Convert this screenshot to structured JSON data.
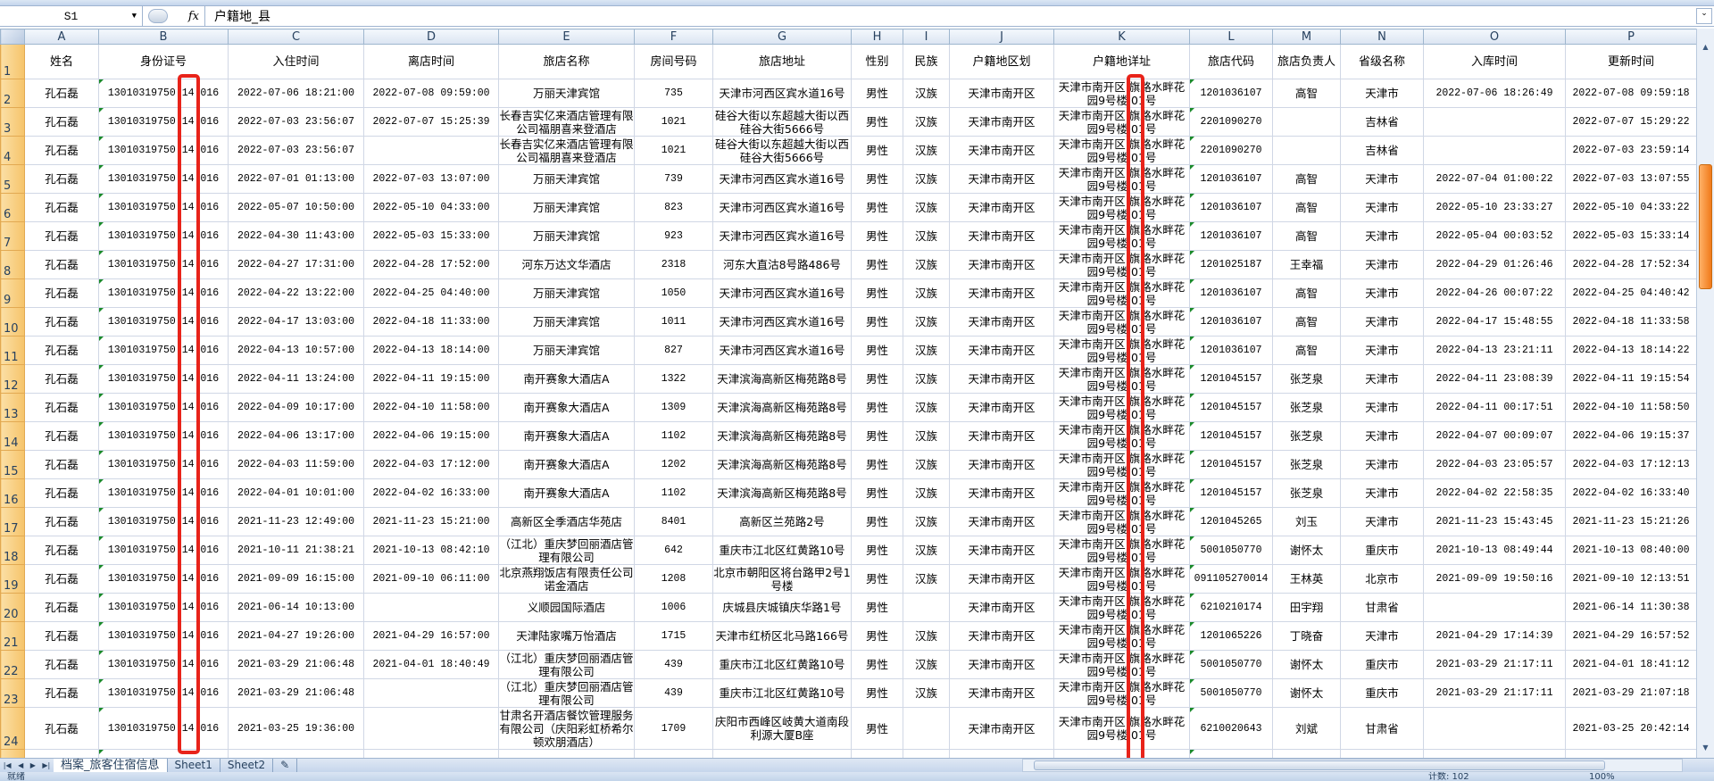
{
  "formula_bar": {
    "name_box": "S1",
    "fx_label": "fx",
    "value": "户籍地_县"
  },
  "sheet": {
    "column_letters": [
      "A",
      "B",
      "C",
      "D",
      "E",
      "F",
      "G",
      "H",
      "I",
      "J",
      "K",
      "L",
      "M",
      "N",
      "O",
      "P"
    ],
    "headers": [
      "姓名",
      "身份证号",
      "入住时间",
      "离店时间",
      "旅店名称",
      "房间号码",
      "旅店地址",
      "性别",
      "民族",
      "户籍地区划",
      "户籍地详址",
      "旅店代码",
      "旅店负责人",
      "省级名称",
      "入库时间",
      "更新时间"
    ],
    "rows": [
      {
        "n": "2",
        "cells": [
          "孔石磊",
          "13010319750 14 016",
          "2022-07-06 18:21:00",
          "2022-07-08 09:59:00",
          "万丽天津宾馆",
          "735",
          "天津市河西区宾水道16号",
          "男性",
          "汉族",
          "天津市南开区",
          "天津市南开区 旗路水畔花园9号楼 01号",
          "1201036107",
          "高智",
          "天津市",
          "2022-07-06 18:26:49",
          "2022-07-08 09:59:18"
        ]
      },
      {
        "n": "3",
        "cells": [
          "孔石磊",
          "13010319750 14 016",
          "2022-07-03 23:56:07",
          "2022-07-07 15:25:39",
          "长春吉实亿来酒店管理有限公司福朋喜来登酒店",
          "1021",
          "硅谷大街以东超越大街以西硅谷大街5666号",
          "男性",
          "汉族",
          "天津市南开区",
          "天津市南开区 旗路水畔花园9号楼 01号",
          "2201090270",
          "",
          "吉林省",
          "",
          "2022-07-07 15:29:22"
        ]
      },
      {
        "n": "4",
        "cells": [
          "孔石磊",
          "13010319750 14 016",
          "2022-07-03 23:56:07",
          "",
          "长春吉实亿来酒店管理有限公司福朋喜来登酒店",
          "1021",
          "硅谷大街以东超越大街以西硅谷大街5666号",
          "男性",
          "汉族",
          "天津市南开区",
          "天津市南开区 旗路水畔花园9号楼 01号",
          "2201090270",
          "",
          "吉林省",
          "",
          "2022-07-03 23:59:14"
        ]
      },
      {
        "n": "5",
        "cells": [
          "孔石磊",
          "13010319750 14 016",
          "2022-07-01 01:13:00",
          "2022-07-03 13:07:00",
          "万丽天津宾馆",
          "739",
          "天津市河西区宾水道16号",
          "男性",
          "汉族",
          "天津市南开区",
          "天津市南开区 旗路水畔花园9号楼 01号",
          "1201036107",
          "高智",
          "天津市",
          "2022-07-04 01:00:22",
          "2022-07-03 13:07:55"
        ]
      },
      {
        "n": "6",
        "cells": [
          "孔石磊",
          "13010319750 14 016",
          "2022-05-07 10:50:00",
          "2022-05-10 04:33:00",
          "万丽天津宾馆",
          "823",
          "天津市河西区宾水道16号",
          "男性",
          "汉族",
          "天津市南开区",
          "天津市南开区 旗路水畔花园9号楼 01号",
          "1201036107",
          "高智",
          "天津市",
          "2022-05-10 23:33:27",
          "2022-05-10 04:33:22"
        ]
      },
      {
        "n": "7",
        "cells": [
          "孔石磊",
          "13010319750 14 016",
          "2022-04-30 11:43:00",
          "2022-05-03 15:33:00",
          "万丽天津宾馆",
          "923",
          "天津市河西区宾水道16号",
          "男性",
          "汉族",
          "天津市南开区",
          "天津市南开区 旗路水畔花园9号楼 01号",
          "1201036107",
          "高智",
          "天津市",
          "2022-05-04 00:03:52",
          "2022-05-03 15:33:14"
        ]
      },
      {
        "n": "8",
        "cells": [
          "孔石磊",
          "13010319750 14 016",
          "2022-04-27 17:31:00",
          "2022-04-28 17:52:00",
          "河东万达文华酒店",
          "2318",
          "河东大直沽8号路486号",
          "男性",
          "汉族",
          "天津市南开区",
          "天津市南开区 旗路水畔花园9号楼 01号",
          "1201025187",
          "王幸福",
          "天津市",
          "2022-04-29 01:26:46",
          "2022-04-28 17:52:34"
        ]
      },
      {
        "n": "9",
        "cells": [
          "孔石磊",
          "13010319750 14 016",
          "2022-04-22 13:22:00",
          "2022-04-25 04:40:00",
          "万丽天津宾馆",
          "1050",
          "天津市河西区宾水道16号",
          "男性",
          "汉族",
          "天津市南开区",
          "天津市南开区 旗路水畔花园9号楼 01号",
          "1201036107",
          "高智",
          "天津市",
          "2022-04-26 00:07:22",
          "2022-04-25 04:40:42"
        ]
      },
      {
        "n": "10",
        "cells": [
          "孔石磊",
          "13010319750 14 016",
          "2022-04-17 13:03:00",
          "2022-04-18 11:33:00",
          "万丽天津宾馆",
          "1011",
          "天津市河西区宾水道16号",
          "男性",
          "汉族",
          "天津市南开区",
          "天津市南开区 旗路水畔花园9号楼 01号",
          "1201036107",
          "高智",
          "天津市",
          "2022-04-17 15:48:55",
          "2022-04-18 11:33:58"
        ]
      },
      {
        "n": "11",
        "cells": [
          "孔石磊",
          "13010319750 14 016",
          "2022-04-13 10:57:00",
          "2022-04-13 18:14:00",
          "万丽天津宾馆",
          "827",
          "天津市河西区宾水道16号",
          "男性",
          "汉族",
          "天津市南开区",
          "天津市南开区 旗路水畔花园9号楼 01号",
          "1201036107",
          "高智",
          "天津市",
          "2022-04-13 23:21:11",
          "2022-04-13 18:14:22"
        ]
      },
      {
        "n": "12",
        "cells": [
          "孔石磊",
          "13010319750 14 016",
          "2022-04-11 13:24:00",
          "2022-04-11 19:15:00",
          "南开赛象大酒店A",
          "1322",
          "天津滨海高新区梅苑路8号",
          "男性",
          "汉族",
          "天津市南开区",
          "天津市南开区 旗路水畔花园9号楼 01号",
          "1201045157",
          "张芝泉",
          "天津市",
          "2022-04-11 23:08:39",
          "2022-04-11 19:15:54"
        ]
      },
      {
        "n": "13",
        "cells": [
          "孔石磊",
          "13010319750 14 016",
          "2022-04-09 10:17:00",
          "2022-04-10 11:58:00",
          "南开赛象大酒店A",
          "1309",
          "天津滨海高新区梅苑路8号",
          "男性",
          "汉族",
          "天津市南开区",
          "天津市南开区 旗路水畔花园9号楼 01号",
          "1201045157",
          "张芝泉",
          "天津市",
          "2022-04-11 00:17:51",
          "2022-04-10 11:58:50"
        ]
      },
      {
        "n": "14",
        "cells": [
          "孔石磊",
          "13010319750 14 016",
          "2022-04-06 13:17:00",
          "2022-04-06 19:15:00",
          "南开赛象大酒店A",
          "1102",
          "天津滨海高新区梅苑路8号",
          "男性",
          "汉族",
          "天津市南开区",
          "天津市南开区 旗路水畔花园9号楼 01号",
          "1201045157",
          "张芝泉",
          "天津市",
          "2022-04-07 00:09:07",
          "2022-04-06 19:15:37"
        ]
      },
      {
        "n": "15",
        "cells": [
          "孔石磊",
          "13010319750 14 016",
          "2022-04-03 11:59:00",
          "2022-04-03 17:12:00",
          "南开赛象大酒店A",
          "1202",
          "天津滨海高新区梅苑路8号",
          "男性",
          "汉族",
          "天津市南开区",
          "天津市南开区 旗路水畔花园9号楼 01号",
          "1201045157",
          "张芝泉",
          "天津市",
          "2022-04-03 23:05:57",
          "2022-04-03 17:12:13"
        ]
      },
      {
        "n": "16",
        "cells": [
          "孔石磊",
          "13010319750 14 016",
          "2022-04-01 10:01:00",
          "2022-04-02 16:33:00",
          "南开赛象大酒店A",
          "1102",
          "天津滨海高新区梅苑路8号",
          "男性",
          "汉族",
          "天津市南开区",
          "天津市南开区 旗路水畔花园9号楼 01号",
          "1201045157",
          "张芝泉",
          "天津市",
          "2022-04-02 22:58:35",
          "2022-04-02 16:33:40"
        ]
      },
      {
        "n": "17",
        "cells": [
          "孔石磊",
          "13010319750 14 016",
          "2021-11-23 12:49:00",
          "2021-11-23 15:21:00",
          "高新区全季酒店华苑店",
          "8401",
          "高新区兰苑路2号",
          "男性",
          "汉族",
          "天津市南开区",
          "天津市南开区 旗路水畔花园9号楼 01号",
          "1201045265",
          "刘玉",
          "天津市",
          "2021-11-23 15:43:45",
          "2021-11-23 15:21:26"
        ]
      },
      {
        "n": "18",
        "cells": [
          "孔石磊",
          "13010319750 14 016",
          "2021-10-11 21:38:21",
          "2021-10-13 08:42:10",
          "（江北）重庆梦回丽酒店管理有限公司",
          "642",
          "重庆市江北区红黄路10号",
          "男性",
          "汉族",
          "天津市南开区",
          "天津市南开区 旗路水畔花园9号楼 01号",
          "5001050770",
          "谢怀太",
          "重庆市",
          "2021-10-13 08:49:44",
          "2021-10-13 08:40:00"
        ]
      },
      {
        "n": "19",
        "cells": [
          "孔石磊",
          "13010319750 14 016",
          "2021-09-09 16:15:00",
          "2021-09-10 06:11:00",
          "北京燕翔饭店有限责任公司诺金酒店",
          "1208",
          "北京市朝阳区将台路甲2号1号楼",
          "男性",
          "汉族",
          "天津市南开区",
          "天津市南开区 旗路水畔花园9号楼 01号",
          "091105270014",
          "王林英",
          "北京市",
          "2021-09-09 19:50:16",
          "2021-09-10 12:13:51"
        ]
      },
      {
        "n": "20",
        "cells": [
          "孔石磊",
          "13010319750 14 016",
          "2021-06-14 10:13:00",
          "",
          "义顺园国际酒店",
          "1006",
          "庆城县庆城镇庆华路1号",
          "男性",
          "",
          "天津市南开区",
          "天津市南开区 旗路水畔花园9号楼 01号",
          "6210210174",
          "田宇翔",
          "甘肃省",
          "",
          "2021-06-14 11:30:38"
        ]
      },
      {
        "n": "21",
        "cells": [
          "孔石磊",
          "13010319750 14 016",
          "2021-04-27 19:26:00",
          "2021-04-29 16:57:00",
          "天津陆家嘴万怡酒店",
          "1715",
          "天津市红桥区北马路166号",
          "男性",
          "汉族",
          "天津市南开区",
          "天津市南开区 旗路水畔花园9号楼 01号",
          "1201065226",
          "丁晓奋",
          "天津市",
          "2021-04-29 17:14:39",
          "2021-04-29 16:57:52"
        ]
      },
      {
        "n": "22",
        "cells": [
          "孔石磊",
          "13010319750 14 016",
          "2021-03-29 21:06:48",
          "2021-04-01 18:40:49",
          "（江北）重庆梦回丽酒店管理有限公司",
          "439",
          "重庆市江北区红黄路10号",
          "男性",
          "汉族",
          "天津市南开区",
          "天津市南开区 旗路水畔花园9号楼 01号",
          "5001050770",
          "谢怀太",
          "重庆市",
          "2021-03-29 21:17:11",
          "2021-04-01 18:41:12"
        ]
      },
      {
        "n": "23",
        "cells": [
          "孔石磊",
          "13010319750 14 016",
          "2021-03-29 21:06:48",
          "",
          "（江北）重庆梦回丽酒店管理有限公司",
          "439",
          "重庆市江北区红黄路10号",
          "男性",
          "汉族",
          "天津市南开区",
          "天津市南开区 旗路水畔花园9号楼 01号",
          "5001050770",
          "谢怀太",
          "重庆市",
          "2021-03-29 21:17:11",
          "2021-03-29 21:07:18"
        ]
      },
      {
        "n": "24",
        "cells": [
          "孔石磊",
          "13010319750 14 016",
          "2021-03-25 19:36:00",
          "",
          "甘肃名开酒店餐饮管理服务有限公司（庆阳彩虹桥希尔顿欢朋酒店）",
          "1709",
          "庆阳市西峰区岐黄大道南段利源大厦B座",
          "男性",
          "",
          "天津市南开区",
          "天津市南开区 旗路水畔花园9号楼 01号",
          "6210020643",
          "刘斌",
          "甘肃省",
          "",
          "2021-03-25 20:42:14"
        ]
      }
    ]
  },
  "sheet_tabs": [
    "档案_旅客住宿信息",
    "Sheet1",
    "Sheet2"
  ],
  "status": {
    "ready": "就绪",
    "count": "计数: 102",
    "zoom": "100%"
  },
  "colors": {
    "highlight_box": "#e8231a",
    "row_header": "#f6c46a",
    "text_number_marker": "#1a8a2a"
  }
}
